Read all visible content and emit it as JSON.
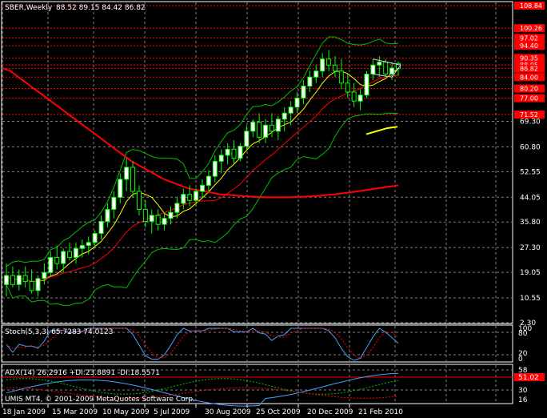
{
  "header": {
    "symbol": "SBER,Weekly",
    "ohlc": "88.52 89.15 84.42 86.82"
  },
  "footer": {
    "copyright": "UMIS MT4, © 2001-2009 MetaQuotes Software Corp."
  },
  "stoch_label": "Stoch(5,3,3) 65.7283 74.0123",
  "adx_label": "ADX(14) 26.2916 +DI:23.8891 -DI:18.5571",
  "stoch_axis": [
    "100",
    "80",
    "20",
    "0"
  ],
  "adx_axis": [
    "58",
    "51.02",
    "30",
    "16"
  ],
  "colors": {
    "background": "#000000",
    "frame": "#ffffff",
    "grid": "#7f7f7f",
    "level_lines": "#ff0000",
    "level_tag": "#ff0000",
    "bull_candle": "#ffffff",
    "bear_candle": "#000000",
    "candle_wick": "#00ff00",
    "ma_fast": "#ffff00",
    "ma_mid": "#ff0000",
    "ma_slow": "#ff0000",
    "bollinger": "#00c000",
    "stoch_main": "#4aa0ff",
    "stoch_signal": "#ff0000",
    "adx_main": "#4aa0ff",
    "adx_plus": "#00c000",
    "adx_minus": "#ff0000"
  },
  "chart_data": {
    "type": "candlestick",
    "title": "SBER,Weekly",
    "y_ticks": [
      "69.30",
      "60.80",
      "52.55",
      "44.05",
      "35.80",
      "27.30",
      "19.05",
      "10.55",
      "2.30"
    ],
    "ylim": [
      2.3,
      108.84
    ],
    "x_ticks": [
      "18 Jan 2009",
      "15 Mar 2009",
      "10 May 2009",
      "5 Jul 2009",
      "30 Aug 2009",
      "25 Oct 2009",
      "20 Dec 2009",
      "21 Feb 2010"
    ],
    "level_tags": [
      "108.84",
      "100.26",
      "97.02",
      "94.40",
      "90.35",
      "88.05",
      "86.82",
      "84.00",
      "80.20",
      "77.00",
      "71.52"
    ],
    "candles": [
      {
        "o": 15,
        "h": 22,
        "l": 11,
        "c": 18
      },
      {
        "o": 18,
        "h": 21,
        "l": 14,
        "c": 15
      },
      {
        "o": 15,
        "h": 20,
        "l": 13,
        "c": 18
      },
      {
        "o": 18,
        "h": 21,
        "l": 14,
        "c": 16
      },
      {
        "o": 16,
        "h": 20,
        "l": 12,
        "c": 13
      },
      {
        "o": 13,
        "h": 18,
        "l": 11,
        "c": 17
      },
      {
        "o": 17,
        "h": 22,
        "l": 15,
        "c": 19
      },
      {
        "o": 19,
        "h": 26,
        "l": 18,
        "c": 24
      },
      {
        "o": 24,
        "h": 28,
        "l": 20,
        "c": 22
      },
      {
        "o": 22,
        "h": 27,
        "l": 19,
        "c": 26
      },
      {
        "o": 26,
        "h": 29,
        "l": 23,
        "c": 24
      },
      {
        "o": 24,
        "h": 29,
        "l": 22,
        "c": 27
      },
      {
        "o": 27,
        "h": 30,
        "l": 24,
        "c": 28
      },
      {
        "o": 28,
        "h": 31,
        "l": 25,
        "c": 29
      },
      {
        "o": 29,
        "h": 33,
        "l": 27,
        "c": 32
      },
      {
        "o": 32,
        "h": 38,
        "l": 30,
        "c": 36
      },
      {
        "o": 36,
        "h": 42,
        "l": 34,
        "c": 40
      },
      {
        "o": 40,
        "h": 46,
        "l": 37,
        "c": 44
      },
      {
        "o": 44,
        "h": 52,
        "l": 42,
        "c": 50
      },
      {
        "o": 50,
        "h": 57,
        "l": 46,
        "c": 54
      },
      {
        "o": 54,
        "h": 56,
        "l": 44,
        "c": 46
      },
      {
        "o": 46,
        "h": 48,
        "l": 38,
        "c": 40
      },
      {
        "o": 40,
        "h": 43,
        "l": 34,
        "c": 36
      },
      {
        "o": 36,
        "h": 40,
        "l": 32,
        "c": 38
      },
      {
        "o": 38,
        "h": 40,
        "l": 33,
        "c": 35
      },
      {
        "o": 35,
        "h": 39,
        "l": 33,
        "c": 37
      },
      {
        "o": 37,
        "h": 41,
        "l": 35,
        "c": 39
      },
      {
        "o": 39,
        "h": 44,
        "l": 37,
        "c": 42
      },
      {
        "o": 42,
        "h": 47,
        "l": 40,
        "c": 45
      },
      {
        "o": 45,
        "h": 48,
        "l": 41,
        "c": 43
      },
      {
        "o": 43,
        "h": 47,
        "l": 41,
        "c": 46
      },
      {
        "o": 46,
        "h": 50,
        "l": 44,
        "c": 48
      },
      {
        "o": 48,
        "h": 53,
        "l": 46,
        "c": 51
      },
      {
        "o": 51,
        "h": 58,
        "l": 49,
        "c": 56
      },
      {
        "o": 56,
        "h": 60,
        "l": 52,
        "c": 58
      },
      {
        "o": 58,
        "h": 62,
        "l": 55,
        "c": 60
      },
      {
        "o": 60,
        "h": 63,
        "l": 55,
        "c": 57
      },
      {
        "o": 57,
        "h": 62,
        "l": 56,
        "c": 61
      },
      {
        "o": 61,
        "h": 68,
        "l": 60,
        "c": 66
      },
      {
        "o": 66,
        "h": 70,
        "l": 64,
        "c": 69
      },
      {
        "o": 69,
        "h": 72,
        "l": 62,
        "c": 64
      },
      {
        "o": 64,
        "h": 70,
        "l": 62,
        "c": 68
      },
      {
        "o": 68,
        "h": 72,
        "l": 64,
        "c": 66
      },
      {
        "o": 66,
        "h": 71,
        "l": 63,
        "c": 70
      },
      {
        "o": 70,
        "h": 74,
        "l": 66,
        "c": 72
      },
      {
        "o": 72,
        "h": 76,
        "l": 68,
        "c": 74
      },
      {
        "o": 74,
        "h": 79,
        "l": 72,
        "c": 77
      },
      {
        "o": 77,
        "h": 83,
        "l": 75,
        "c": 81
      },
      {
        "o": 81,
        "h": 86,
        "l": 79,
        "c": 84
      },
      {
        "o": 84,
        "h": 88,
        "l": 82,
        "c": 86
      },
      {
        "o": 86,
        "h": 92,
        "l": 84,
        "c": 90
      },
      {
        "o": 90,
        "h": 93,
        "l": 86,
        "c": 88
      },
      {
        "o": 88,
        "h": 91,
        "l": 84,
        "c": 86
      },
      {
        "o": 86,
        "h": 90,
        "l": 80,
        "c": 82
      },
      {
        "o": 82,
        "h": 85,
        "l": 77,
        "c": 79
      },
      {
        "o": 79,
        "h": 82,
        "l": 74,
        "c": 76
      },
      {
        "o": 76,
        "h": 80,
        "l": 73,
        "c": 78
      },
      {
        "o": 78,
        "h": 86,
        "l": 77,
        "c": 85
      },
      {
        "o": 85,
        "h": 90,
        "l": 83,
        "c": 88
      },
      {
        "o": 88,
        "h": 91,
        "l": 84,
        "c": 89
      },
      {
        "o": 89,
        "h": 90,
        "l": 84,
        "c": 85
      },
      {
        "o": 85,
        "h": 89,
        "l": 83,
        "c": 87
      },
      {
        "o": 88.52,
        "h": 89.15,
        "l": 84.42,
        "c": 86.82
      }
    ],
    "ma_slow_values": [
      87,
      86,
      84,
      82,
      80,
      78,
      76,
      74,
      72,
      70,
      68,
      66,
      64,
      62,
      60,
      58,
      56,
      54.5,
      53,
      51.5,
      50,
      49,
      48,
      47,
      46.5,
      46,
      45.5,
      45,
      44.8,
      44.6,
      44.4,
      44.2,
      44.1,
      44.0,
      44.0,
      44.0,
      44.1,
      44.2,
      44.3,
      44.5,
      44.7,
      45.0,
      45.3,
      45.6,
      46.0,
      46.4,
      46.8,
      47.2,
      47.6,
      48.0
    ],
    "ma_fast_short": [
      65,
      66,
      67,
      67.5
    ]
  }
}
